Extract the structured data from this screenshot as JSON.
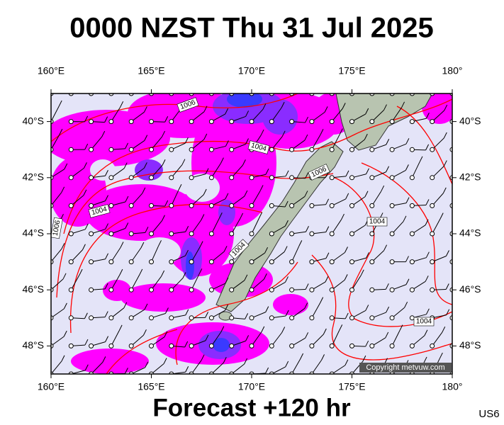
{
  "title": "0000 NZST Thu 31 Jul 2025",
  "footer": "Forecast +120 hr",
  "model_code": "US6",
  "copyright": "Copyright metvuw.com",
  "lon_labels": [
    {
      "value": 160,
      "label": "160°E"
    },
    {
      "value": 165,
      "label": "165°E"
    },
    {
      "value": 170,
      "label": "170°E"
    },
    {
      "value": 175,
      "label": "175°E"
    },
    {
      "value": 180,
      "label": "180°"
    }
  ],
  "lat_labels": [
    {
      "value": -40,
      "label": "40°S"
    },
    {
      "value": -42,
      "label": "42°S"
    },
    {
      "value": -44,
      "label": "44°S"
    },
    {
      "value": -46,
      "label": "46°S"
    },
    {
      "value": -48,
      "label": "48°S"
    }
  ],
  "lon_range": [
    160,
    180
  ],
  "lat_range": [
    -39,
    -49
  ],
  "isobar_labels": [
    "1006",
    "1004",
    "1006",
    "1004",
    "1006",
    "1004",
    "1004",
    "1004"
  ]
}
